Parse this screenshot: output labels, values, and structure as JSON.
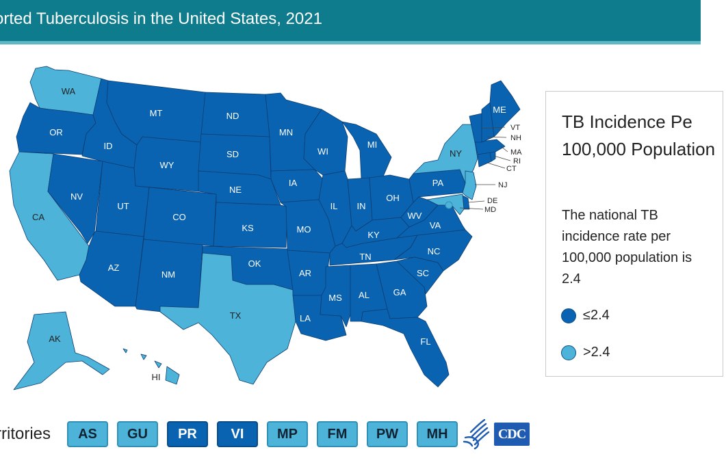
{
  "header": {
    "title": "orted Tuberculosis in the United States, 2021"
  },
  "legend": {
    "title": "TB Incidence Pe 100,000 Population",
    "note": "The national TB incidence rate per 100,000 population is 2.4",
    "items": [
      {
        "label": "≤2.4",
        "color": "#0a63b0"
      },
      {
        "label": ">2.4",
        "color": "#4db3d9"
      }
    ]
  },
  "colors": {
    "low": "#0a63b0",
    "high": "#4db3d9",
    "header": "#0e7c8c"
  },
  "states": {
    "WA": ">2.4",
    "OR": "≤2.4",
    "CA": ">2.4",
    "NV": "≤2.4",
    "ID": "≤2.4",
    "MT": "≤2.4",
    "WY": "≤2.4",
    "UT": "≤2.4",
    "AZ": "≤2.4",
    "CO": "≤2.4",
    "NM": "≤2.4",
    "ND": "≤2.4",
    "SD": "≤2.4",
    "NE": "≤2.4",
    "KS": "≤2.4",
    "OK": "≤2.4",
    "TX": ">2.4",
    "MN": "≤2.4",
    "IA": "≤2.4",
    "MO": "≤2.4",
    "AR": "≤2.4",
    "LA": "≤2.4",
    "WI": "≤2.4",
    "IL": "≤2.4",
    "MI": "≤2.4",
    "IN": "≤2.4",
    "OH": "≤2.4",
    "KY": "≤2.4",
    "TN": "≤2.4",
    "MS": "≤2.4",
    "AL": "≤2.4",
    "GA": "≤2.4",
    "FL": "≤2.4",
    "SC": "≤2.4",
    "NC": "≤2.4",
    "VA": "≤2.4",
    "WV": "≤2.4",
    "PA": "≤2.4",
    "NY": ">2.4",
    "VT": "≤2.4",
    "NH": "≤2.4",
    "ME": "≤2.4",
    "MA": "≤2.4",
    "RI": "≤2.4",
    "CT": "≤2.4",
    "NJ": ">2.4",
    "DE": "≤2.4",
    "MD": ">2.4",
    "AK": ">2.4",
    "HI": ">2.4"
  },
  "territories": {
    "label": "rritories",
    "items": [
      {
        "code": "AS",
        "level": ">2.4"
      },
      {
        "code": "GU",
        "level": ">2.4"
      },
      {
        "code": "PR",
        "level": "≤2.4"
      },
      {
        "code": "VI",
        "level": "≤2.4"
      },
      {
        "code": "MP",
        "level": ">2.4"
      },
      {
        "code": "FM",
        "level": ">2.4"
      },
      {
        "code": "PW",
        "level": ">2.4"
      },
      {
        "code": "MH",
        "level": ">2.4"
      }
    ]
  },
  "logos": {
    "cdc": "CDC",
    "hhs": "hhs-eagle-icon"
  }
}
